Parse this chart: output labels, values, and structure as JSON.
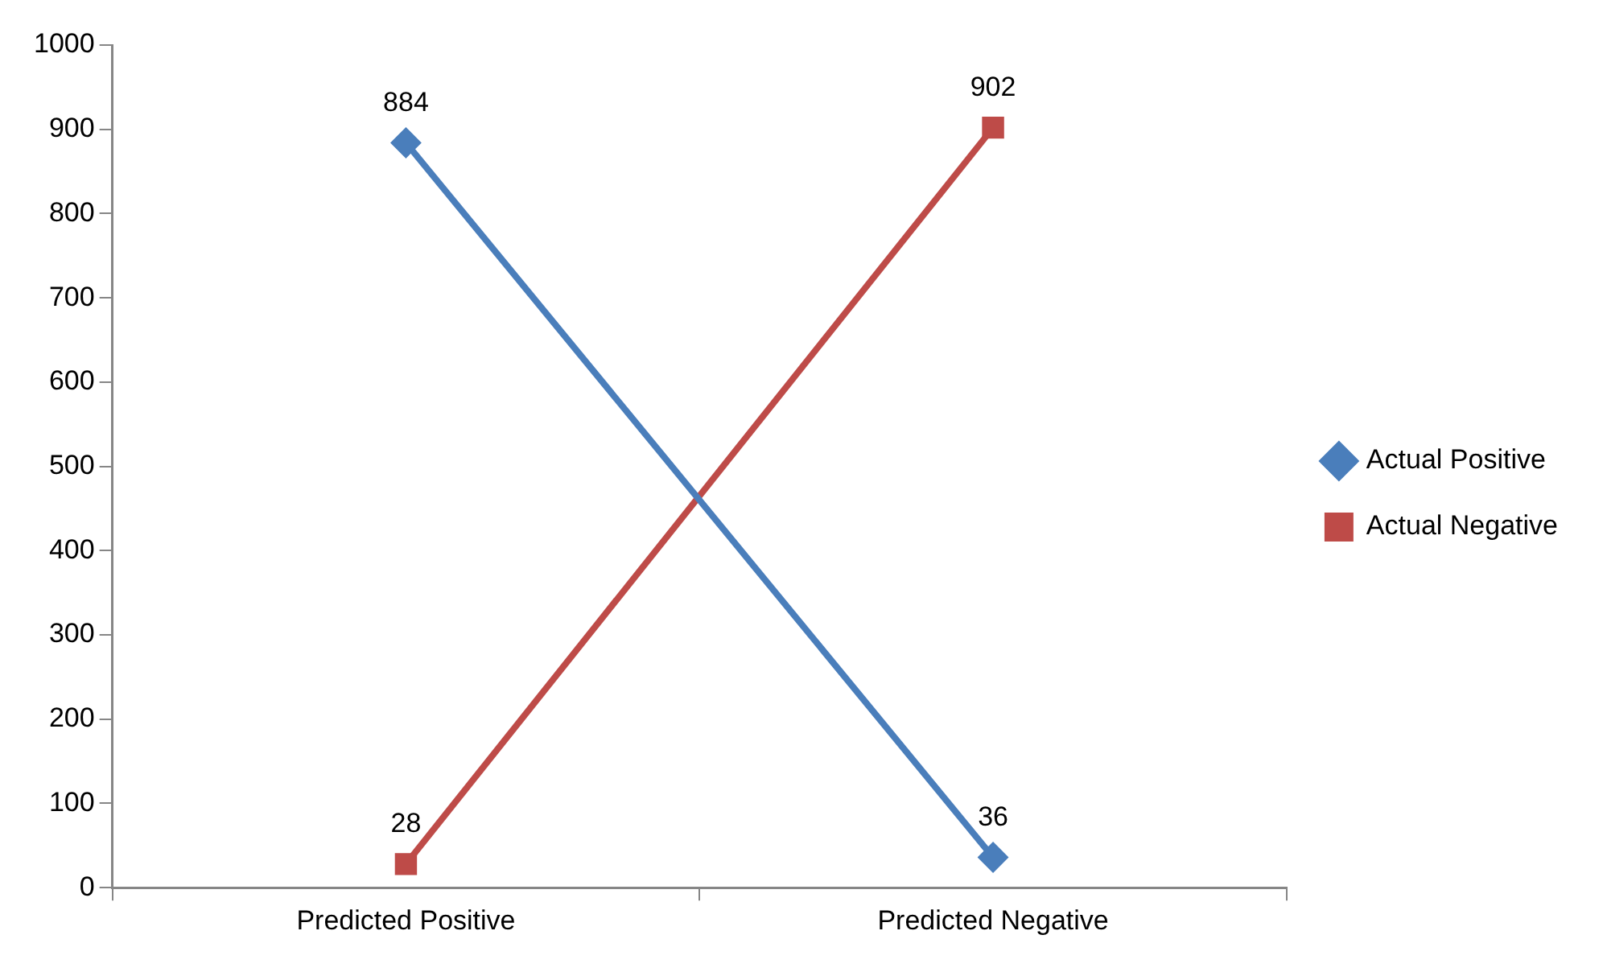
{
  "chart_data": {
    "type": "line",
    "categories": [
      "Predicted Positive",
      "Predicted Negative"
    ],
    "series": [
      {
        "name": "Actual Positive",
        "color": "#4a7ebb",
        "values": [
          884,
          36
        ],
        "marker": "diamond"
      },
      {
        "name": "Actual Negative",
        "color": "#be4b48",
        "values": [
          28,
          902
        ],
        "marker": "square"
      }
    ],
    "ylim": [
      0,
      1000
    ],
    "yticks": [
      0,
      100,
      200,
      300,
      400,
      500,
      600,
      700,
      800,
      900,
      1000
    ],
    "grid": false,
    "legend": "right",
    "data_labels": true,
    "line_style": "solid"
  }
}
